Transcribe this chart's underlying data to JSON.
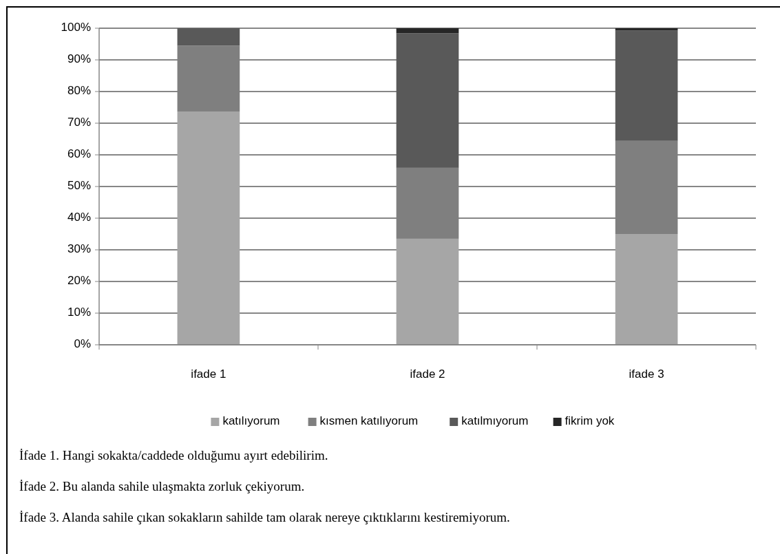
{
  "chart_data": {
    "type": "bar",
    "stacked": true,
    "categories": [
      "ifade 1",
      "ifade 2",
      "ifade 3"
    ],
    "series": [
      {
        "name": "katılıyorum",
        "color": "#a6a6a6",
        "values": [
          73.7,
          33.5,
          35.0
        ]
      },
      {
        "name": "kısmen katılıyorum",
        "color": "#7f7f7f",
        "values": [
          20.8,
          22.4,
          29.4
        ]
      },
      {
        "name": "katılmıyorum",
        "color": "#595959",
        "values": [
          5.5,
          42.5,
          34.9
        ]
      },
      {
        "name": "fikrim yok",
        "color": "#262626",
        "values": [
          0,
          1.6,
          0.7
        ]
      }
    ],
    "ylim": [
      0,
      100
    ],
    "yticks": [
      {
        "value": 0,
        "label": "0%"
      },
      {
        "value": 10,
        "label": "10%"
      },
      {
        "value": 20,
        "label": "20%"
      },
      {
        "value": 30,
        "label": "30%"
      },
      {
        "value": 40,
        "label": "40%"
      },
      {
        "value": 50,
        "label": "50%"
      },
      {
        "value": 60,
        "label": "60%"
      },
      {
        "value": 70,
        "label": "70%"
      },
      {
        "value": 80,
        "label": "80%"
      },
      {
        "value": 90,
        "label": "90%"
      },
      {
        "value": 100,
        "label": "100%"
      }
    ],
    "grid": "y",
    "legend": "bottom",
    "annotations": [
      "İfade 1. Hangi sokakta/caddede olduğumu ayırt edebilirim.",
      "İfade 2. Bu alanda sahile ulaşmakta zorluk çekiyorum.",
      "İfade 3. Alanda sahile çıkan sokakların sahilde tam olarak nereye çıktıklarını kestiremiyorum."
    ]
  }
}
